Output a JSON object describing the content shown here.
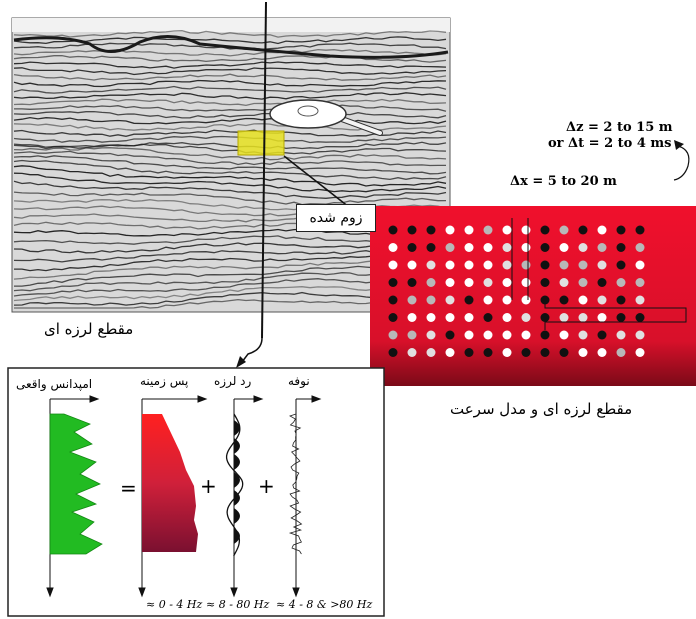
{
  "labels": {
    "zoom": "زوم شده",
    "seismic_section": "مقطع لرزه ای",
    "section_and_velocity_model": "مقطع لرزه ای و مدل سرعت"
  },
  "parameters": {
    "dz": "Δz = 2 to 15 m",
    "dt": "or Δt = 2 to 4 ms",
    "dx": "Δx  =  5 to  20 m"
  },
  "components": {
    "impedance": "امپدانس واقعی",
    "background": "پس زمینه",
    "seismic_trace": "رد لرزه",
    "noise": "نوفه",
    "equals": "=",
    "plus_1": "+",
    "plus_2": "+"
  },
  "frequency_bands": {
    "background": "≈ 0 - 4 Hz",
    "trace": "≈ 8 - 80 Hz",
    "noise": "≈ 4 - 8 & >80  Hz"
  },
  "colors": {
    "impedance_fill": "#22bb22",
    "model_red": "#e8102a",
    "highlight_yellow": "#e6e020"
  }
}
